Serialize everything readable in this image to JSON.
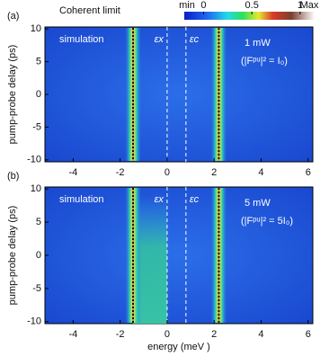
{
  "chart_data": [
    {
      "type": "heatmap",
      "title": "Coherent limit",
      "panel_label": "(a)",
      "series_label": "simulation",
      "annotation": "1 mW",
      "annotation_sub": "(|Fᵖᵘ|² = I₀)",
      "y_label": "pump-probe delay  (ps)",
      "xlim": [
        -5.2,
        6.2
      ],
      "xticks": [
        -4,
        -2,
        0,
        2,
        4,
        6
      ],
      "ylim": [
        -10.3,
        10.3
      ],
      "yticks": [
        -10,
        -5,
        0,
        5,
        10
      ],
      "markers": [
        {
          "x": 0,
          "label": "εx"
        },
        {
          "x": 0.8,
          "label": "εc"
        }
      ],
      "resonances": [
        -1.45,
        2.2
      ],
      "colorbar": {
        "min_label": "min",
        "max_label": "Max",
        "clim": [
          -0.2,
          1.15
        ],
        "ticks": [
          0,
          0.5,
          1
        ]
      }
    },
    {
      "type": "heatmap",
      "panel_label": "(b)",
      "series_label": "simulation",
      "annotation": "5 mW",
      "annotation_sub": "(|Fᵖᵘ|² = 5I₀)",
      "y_label": "pump-probe delay  (ps)",
      "x_label": "energy (meV )",
      "xlim": [
        -5.2,
        6.2
      ],
      "xticks": [
        -4,
        -2,
        0,
        2,
        4,
        6
      ],
      "ylim": [
        -10.3,
        10.3
      ],
      "yticks": [
        -10,
        -5,
        0,
        5,
        10
      ],
      "markers": [
        {
          "x": 0,
          "label": "εx"
        },
        {
          "x": 0.8,
          "label": "εc"
        }
      ],
      "resonances": [
        -1.45,
        2.2
      ]
    }
  ]
}
